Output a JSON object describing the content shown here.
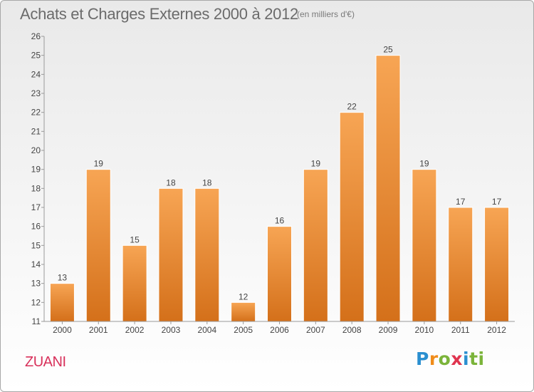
{
  "title": "Achats et Charges Externes 2000 à 2012",
  "subtitle": "(en milliers d'€)",
  "commune": "ZUANI",
  "logo_text": "Proxiti",
  "colors": {
    "bar_light": "#f7a554",
    "bar_dark": "#d4701a",
    "commune": "#d8315b"
  },
  "chart_data": {
    "type": "bar",
    "categories": [
      "2000",
      "2001",
      "2002",
      "2003",
      "2004",
      "2005",
      "2006",
      "2007",
      "2008",
      "2009",
      "2010",
      "2011",
      "2012"
    ],
    "values": [
      13,
      19,
      15,
      18,
      18,
      12,
      16,
      19,
      22,
      25,
      19,
      17,
      17
    ],
    "data_labels": [
      "13",
      "19",
      "15",
      "18",
      "18",
      "12",
      "16",
      "19",
      "22",
      "25",
      "19",
      "17",
      "17"
    ],
    "y_ticks": [
      "11",
      "12",
      "13",
      "14",
      "15",
      "16",
      "17",
      "18",
      "19",
      "20",
      "21",
      "22",
      "23",
      "24",
      "25",
      "26"
    ],
    "ylim": [
      11,
      26
    ],
    "grid": false
  }
}
